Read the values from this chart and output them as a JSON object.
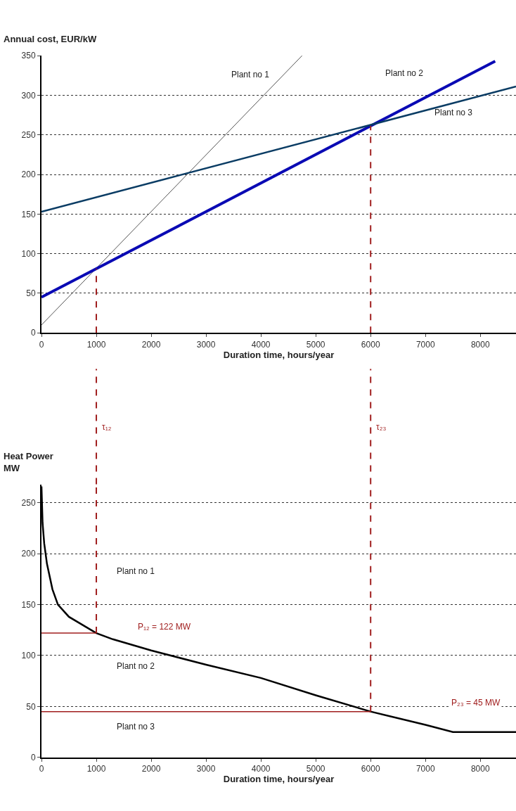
{
  "chart_data": [
    {
      "type": "line",
      "ylabel": "Annual cost, EUR/kW",
      "xlabel": "Duration time, hours/year",
      "xlim": [
        0,
        8650
      ],
      "xticks": [
        0,
        1000,
        2000,
        3000,
        4000,
        5000,
        6000,
        7000,
        8000
      ],
      "ylim": [
        0,
        350
      ],
      "yticks": [
        0,
        50,
        100,
        150,
        200,
        250,
        300,
        350
      ],
      "grid": "y",
      "series": [
        {
          "name": "Plant no 1",
          "color": "#555555",
          "x": [
            0,
            4750
          ],
          "values": [
            10,
            350
          ]
        },
        {
          "name": "Plant no 2",
          "color": "#0a0ab4",
          "x": [
            0,
            8270
          ],
          "values": [
            45,
            343
          ]
        },
        {
          "name": "Plant no 3",
          "color": "#0a3c64",
          "x": [
            0,
            8650
          ],
          "values": [
            153,
            311
          ]
        }
      ],
      "ref_lines": [
        {
          "axis": "x",
          "value": 1000,
          "label": "τ₁₂",
          "color": "#a01e1e",
          "line_style": "dashed"
        },
        {
          "axis": "x",
          "value": 6000,
          "label": "τ₂₃",
          "color": "#a01e1e",
          "line_style": "dashed"
        }
      ]
    },
    {
      "type": "line",
      "ylabel": "Heat Power\nMW",
      "xlabel": "Duration time, hours/year",
      "xlim": [
        0,
        8650
      ],
      "xticks": [
        0,
        1000,
        2000,
        3000,
        4000,
        5000,
        6000,
        7000,
        8000
      ],
      "ylim": [
        0,
        268
      ],
      "yticks": [
        0,
        50,
        100,
        150,
        200,
        250
      ],
      "grid": "y",
      "series": [
        {
          "color": "#000000",
          "x": [
            0,
            20,
            50,
            100,
            200,
            300,
            500,
            1000,
            1300,
            2000,
            3000,
            4000,
            5000,
            6000,
            7000,
            7500,
            8650
          ],
          "values": [
            266,
            230,
            210,
            190,
            165,
            150,
            138,
            122,
            116,
            105,
            91,
            78,
            61,
            45,
            32,
            25,
            25
          ]
        },
        {
          "color": "#a01e1e",
          "x": [
            0,
            1000
          ],
          "values": [
            122,
            122
          ]
        },
        {
          "color": "#a01e1e",
          "x": [
            0,
            6000
          ],
          "values": [
            45,
            45
          ]
        }
      ],
      "ref_lines": [
        {
          "axis": "x",
          "value": 1000,
          "color": "#a01e1e",
          "line_style": "dashed"
        },
        {
          "axis": "x",
          "value": 6000,
          "color": "#a01e1e",
          "line_style": "dashed"
        }
      ],
      "annotations": [
        "P₁₂ = 122 MW",
        "P₂₃ = 45 MW",
        "Plant no 1",
        "Plant no 2",
        "Plant no 3"
      ]
    }
  ]
}
